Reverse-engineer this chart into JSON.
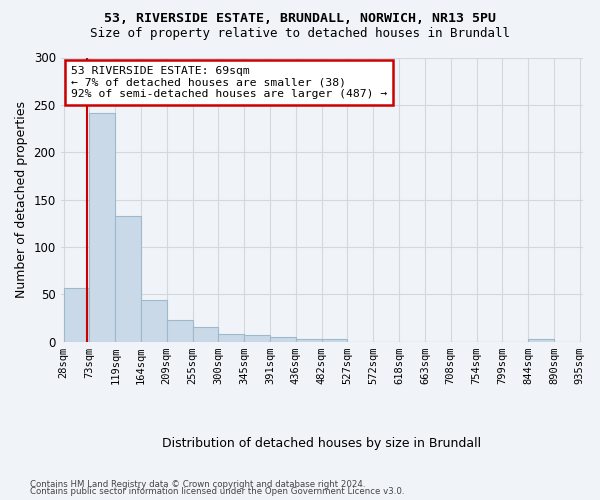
{
  "title_line1": "53, RIVERSIDE ESTATE, BRUNDALL, NORWICH, NR13 5PU",
  "title_line2": "Size of property relative to detached houses in Brundall",
  "xlabel": "Distribution of detached houses by size in Brundall",
  "ylabel": "Number of detached properties",
  "bar_edges": [
    28,
    73,
    119,
    164,
    209,
    255,
    300,
    345,
    391,
    436,
    482,
    527,
    572,
    618,
    663,
    708,
    754,
    799,
    844,
    890,
    935
  ],
  "bar_heights": [
    57,
    241,
    133,
    44,
    23,
    16,
    8,
    7,
    5,
    3,
    3,
    0,
    0,
    0,
    0,
    0,
    0,
    0,
    3,
    0
  ],
  "bar_color": "#c9d9e8",
  "bar_edge_color": "#a0b8cc",
  "property_size": 69,
  "annotation_title": "53 RIVERSIDE ESTATE: 69sqm",
  "annotation_line2": "← 7% of detached houses are smaller (38)",
  "annotation_line3": "92% of semi-detached houses are larger (487) →",
  "annotation_box_color": "#ffffff",
  "annotation_border_color": "#cc0000",
  "vline_color": "#cc0000",
  "ylim": [
    0,
    300
  ],
  "yticks": [
    0,
    50,
    100,
    150,
    200,
    250,
    300
  ],
  "footer_line1": "Contains HM Land Registry data © Crown copyright and database right 2024.",
  "footer_line2": "Contains public sector information licensed under the Open Government Licence v3.0.",
  "background_color": "#f0f4f8",
  "grid_color": "#d0d8e0"
}
